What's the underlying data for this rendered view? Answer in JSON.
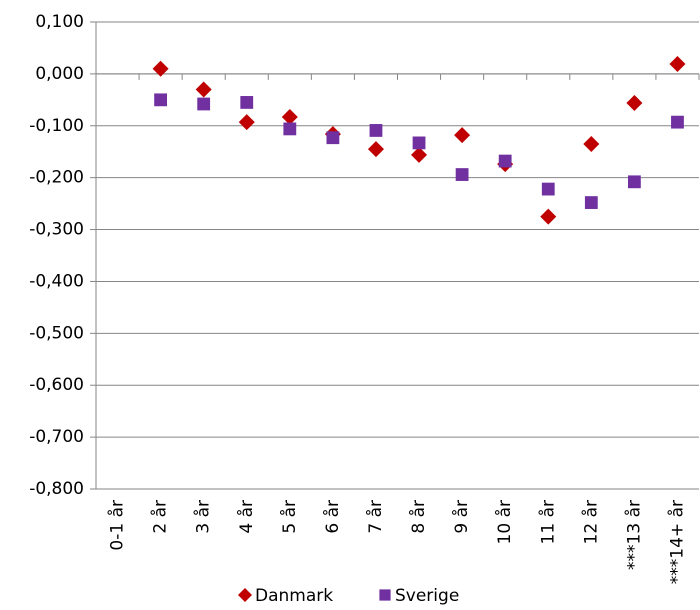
{
  "chart_data": {
    "type": "scatter",
    "categories": [
      "0-1 år",
      "2 år",
      "3 år",
      "4 år",
      "5 år",
      "6 år",
      "7 år",
      "8 år",
      "9 år",
      "10 år",
      "11 år",
      "12 år",
      "***13 år",
      "***14+ år"
    ],
    "series": [
      {
        "name": "Danmark",
        "color": "#c00000",
        "marker": "diamond",
        "values": [
          null,
          0.01,
          -0.03,
          -0.093,
          -0.083,
          -0.116,
          -0.145,
          -0.156,
          -0.118,
          -0.174,
          -0.275,
          -0.135,
          -0.056,
          0.019
        ]
      },
      {
        "name": "Sverige",
        "color": "#7030a0",
        "marker": "square",
        "values": [
          null,
          -0.05,
          -0.058,
          -0.055,
          -0.106,
          -0.123,
          -0.109,
          -0.133,
          -0.194,
          -0.168,
          -0.222,
          -0.248,
          -0.208,
          -0.093
        ]
      }
    ],
    "ylim": [
      -0.8,
      0.1
    ],
    "yticks": [
      {
        "value": 0.1,
        "label": "0,100"
      },
      {
        "value": 0,
        "label": "0,000"
      },
      {
        "value": -0.1,
        "label": "-0,100"
      },
      {
        "value": -0.2,
        "label": "-0,200"
      },
      {
        "value": -0.3,
        "label": "-0,300"
      },
      {
        "value": -0.4,
        "label": "-0,400"
      },
      {
        "value": -0.5,
        "label": "-0,500"
      },
      {
        "value": -0.6,
        "label": "-0,600"
      },
      {
        "value": -0.7,
        "label": "-0,700"
      },
      {
        "value": -0.8,
        "label": "-0,800"
      }
    ],
    "grid": true,
    "legend": "bottom"
  }
}
